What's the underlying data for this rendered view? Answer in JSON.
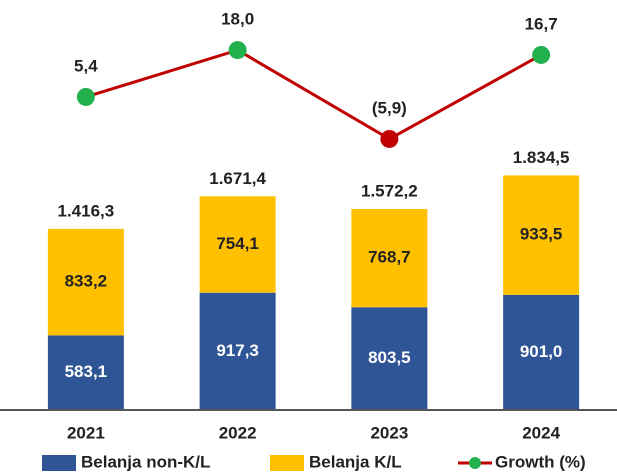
{
  "chart_data": {
    "type": "bar",
    "categories": [
      "2021",
      "2022",
      "2023",
      "2024"
    ],
    "stacked": true,
    "series": [
      {
        "name": "Belanja non-K/L",
        "color": "#2f5597",
        "values": [
          583.1,
          917.3,
          803.5,
          901.0
        ],
        "value_labels": [
          "583,1",
          "917,3",
          "803,5",
          "901,0"
        ]
      },
      {
        "name": "Belanja K/L",
        "color": "#ffc000",
        "values": [
          833.2,
          754.1,
          768.7,
          933.5
        ],
        "value_labels": [
          "833,2",
          "754,1",
          "768,7",
          "933,5"
        ]
      },
      {
        "name": "Growth (%)",
        "type": "line",
        "axis": "y2",
        "color": "#c00000",
        "marker_colors": [
          "#22b14c",
          "#22b14c",
          "#c00000",
          "#22b14c"
        ],
        "values": [
          5.4,
          18.0,
          -5.9,
          16.7
        ],
        "value_labels": [
          "5,4",
          "18,0",
          "(5,9)",
          "16,7"
        ]
      }
    ],
    "totals": [
      1416.3,
      1671.4,
      1572.2,
      1834.5
    ],
    "total_labels": [
      "1.416,3",
      "1.671,4",
      "1.572,2",
      "1.834,5"
    ],
    "ylim": [
      0,
      3050
    ],
    "y2lim": [
      -78.8,
      26.1
    ],
    "legend": "bottom"
  }
}
